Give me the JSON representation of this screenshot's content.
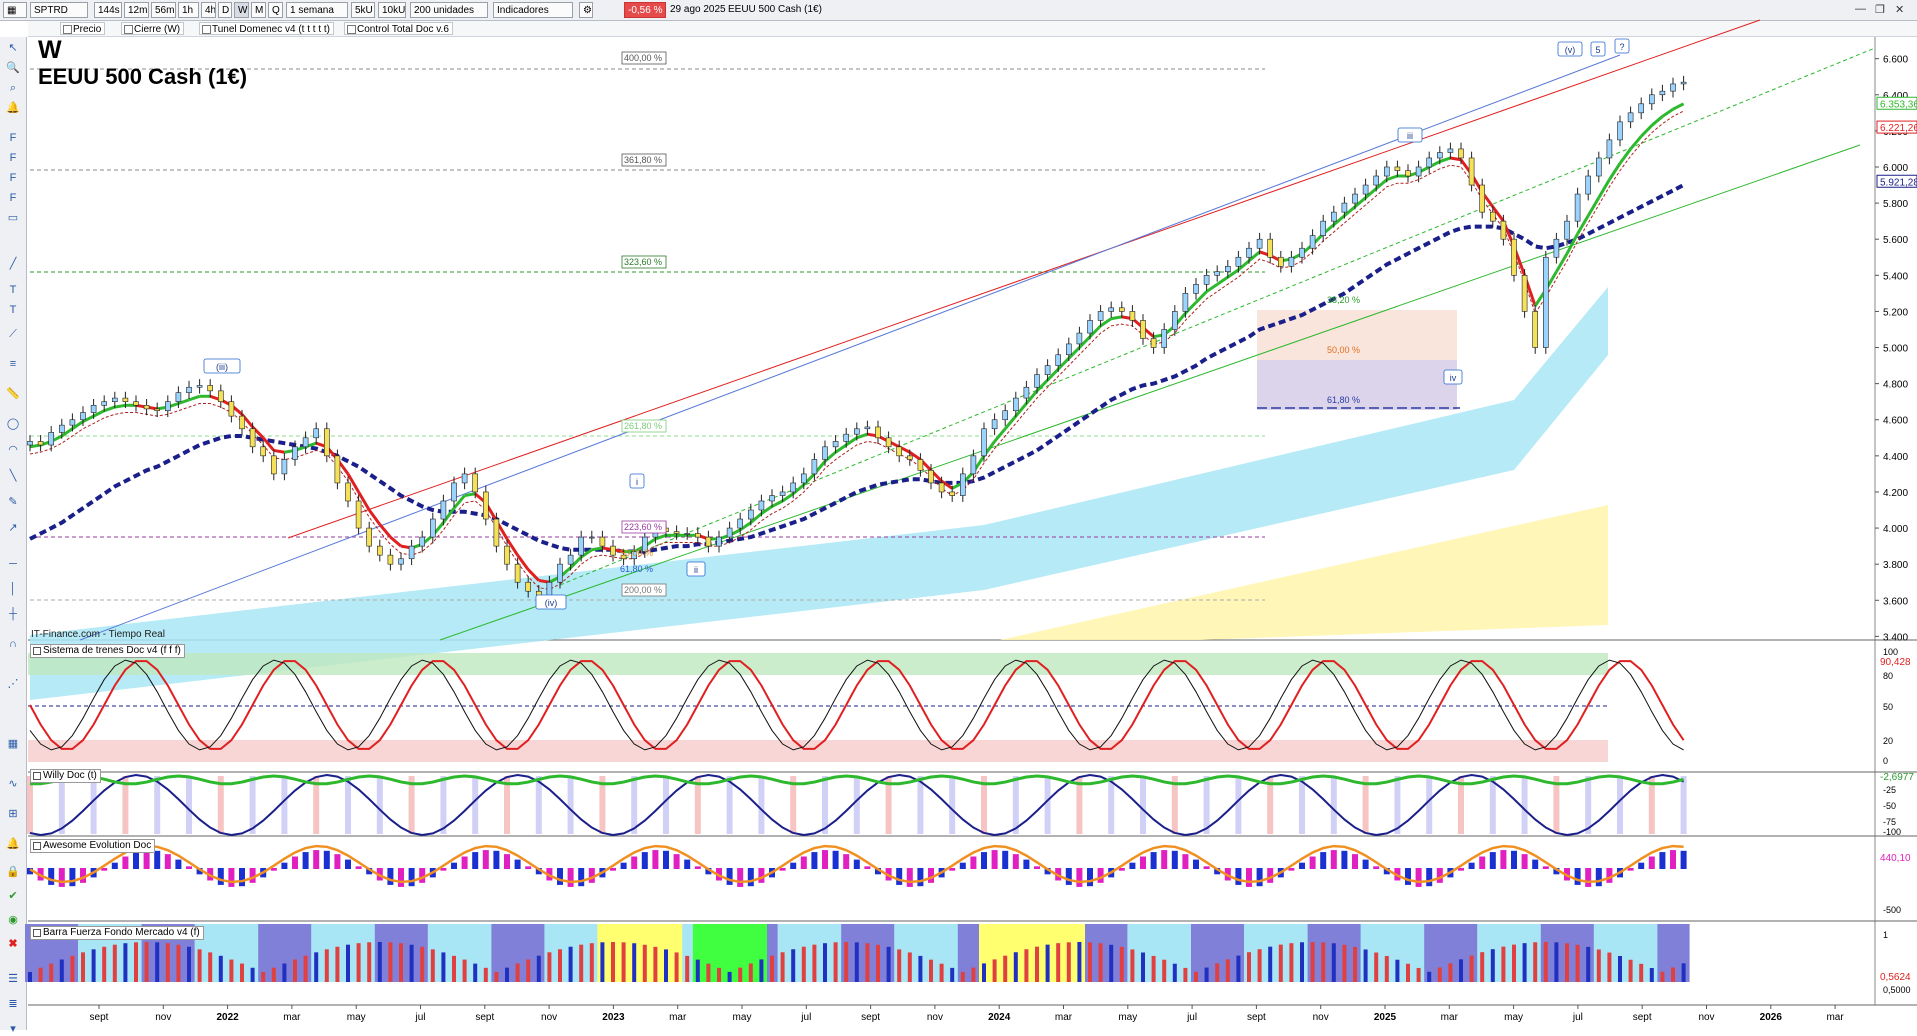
{
  "toolbar": {
    "symbol": "SPTRD",
    "timeframes": [
      "144s",
      "12m",
      "56m",
      "1h",
      "4h",
      "D",
      "W",
      "M",
      "Q"
    ],
    "active_timeframe": "W",
    "range": "1 semana",
    "units_5": "5kU",
    "units_10": "10kU",
    "units": "200 unidades",
    "indicators": "Indicadores",
    "change": "-0,56 %",
    "date": "29 ago 2025",
    "instrument": "EEUU 500 Cash (1€)"
  },
  "toolbar2": [
    "Precio",
    "Cierre (W)",
    "Tunel Domenec v4 (t t t t t)",
    "Control Total Doc v.6"
  ],
  "chart_title": "W",
  "chart_subtitle": "EEUU 500 Cash (1€)",
  "source": "IT-Finance.com - Tiempo Real",
  "colors": {
    "green": "#2db82d",
    "red": "#e02020",
    "navy": "#1a1f8a",
    "brown": "#a0641e",
    "cyan": "#a8e6f5",
    "yellow": "#fff5b0"
  },
  "chart_data": {
    "type": "line",
    "x_ticks": [
      "sept",
      "nov",
      "2022",
      "mar",
      "may",
      "jul",
      "sept",
      "nov",
      "2023",
      "mar",
      "may",
      "jul",
      "sept",
      "nov",
      "2024",
      "mar",
      "may",
      "jul",
      "sept",
      "nov",
      "2025",
      "mar",
      "may",
      "jul",
      "sept",
      "nov",
      "2026",
      "mar"
    ],
    "y_ticks": [
      "6.600",
      "6.400",
      "6.200",
      "6.000",
      "5.800",
      "5.600",
      "5.400",
      "5.200",
      "5.000",
      "4.800",
      "4.600",
      "4.400",
      "4.200",
      "4.000",
      "3.800",
      "3.600",
      "3.400"
    ],
    "ylim": [
      3380,
      6720
    ],
    "price_labels": [
      "6.353,36",
      "6.221,26",
      "5.921,28"
    ],
    "fib_labels": [
      "400,00 %",
      "361,80 %",
      "323,60 %",
      "261,80 %",
      "223,60 %",
      "200,00 %",
      "50,00 %",
      "61,80 %",
      "38,20 %",
      "50,00 %",
      "61,80 %"
    ],
    "wave_labels": [
      "(iii)",
      "(iv)",
      "i",
      "ii",
      "iii",
      "iv",
      "(v)",
      "5",
      "?"
    ],
    "price": [
      4480,
      4460,
      4530,
      4570,
      4600,
      4640,
      4680,
      4700,
      4720,
      4700,
      4680,
      4660,
      4650,
      4700,
      4750,
      4780,
      4790,
      4760,
      4700,
      4620,
      4550,
      4450,
      4400,
      4300,
      4380,
      4450,
      4500,
      4550,
      4400,
      4250,
      4150,
      4000,
      3900,
      3850,
      3800,
      3830,
      3900,
      3950,
      4050,
      4150,
      4250,
      4300,
      4200,
      4050,
      3900,
      3800,
      3700,
      3650,
      3620,
      3700,
      3800,
      3850,
      3950,
      3950,
      3900,
      3850,
      3830,
      3870,
      3950,
      4000,
      3980,
      3970,
      3970,
      3950,
      3900,
      3950,
      4000,
      4050,
      4100,
      4150,
      4180,
      4200,
      4250,
      4300,
      4380,
      4450,
      4480,
      4520,
      4550,
      4560,
      4500,
      4450,
      4400,
      4380,
      4320,
      4250,
      4200,
      4180,
      4300,
      4400,
      4550,
      4600,
      4650,
      4720,
      4780,
      4850,
      4900,
      4960,
      5020,
      5080,
      5150,
      5200,
      5220,
      5200,
      5150,
      5050,
      5000,
      5100,
      5200,
      5300,
      5350,
      5400,
      5420,
      5450,
      5500,
      5550,
      5600,
      5500,
      5450,
      5500,
      5550,
      5620,
      5700,
      5750,
      5800,
      5850,
      5900,
      5950,
      6000,
      5980,
      5950,
      6000,
      6050,
      6080,
      6100,
      6050,
      5900,
      5750,
      5700,
      5600,
      5400,
      5200,
      5000,
      5500,
      5600,
      5700,
      5850,
      5950,
      6050,
      6150,
      6250,
      6300,
      6350,
      6400,
      6420,
      6460,
      6470
    ],
    "ema_fast": [
      4450,
      4460,
      4480,
      4510,
      4550,
      4590,
      4620,
      4650,
      4670,
      4680,
      4680,
      4670,
      4660,
      4670,
      4690,
      4710,
      4730,
      4730,
      4710,
      4680,
      4630,
      4560,
      4500,
      4430,
      4420,
      4430,
      4450,
      4470,
      4450,
      4380,
      4300,
      4200,
      4100,
      4020,
      3950,
      3900,
      3890,
      3910,
      3960,
      4030,
      4110,
      4180,
      4190,
      4140,
      4040,
      3940,
      3850,
      3770,
      3710,
      3700,
      3730,
      3780,
      3840,
      3880,
      3890,
      3880,
      3870,
      3870,
      3900,
      3940,
      3960,
      3960,
      3960,
      3960,
      3940,
      3940,
      3960,
      3990,
      4030,
      4080,
      4120,
      4150,
      4190,
      4240,
      4300,
      4370,
      4420,
      4460,
      4500,
      4520,
      4510,
      4480,
      4450,
      4420,
      4380,
      4320,
      4260,
      4220,
      4250,
      4310,
      4400,
      4480,
      4550,
      4620,
      4690,
      4760,
      4820,
      4880,
      4940,
      5000,
      5060,
      5120,
      5160,
      5170,
      5160,
      5110,
      5060,
      5070,
      5120,
      5190,
      5250,
      5310,
      5350,
      5390,
      5430,
      5480,
      5530,
      5510,
      5480,
      5490,
      5520,
      5570,
      5630,
      5680,
      5730,
      5780,
      5830,
      5880,
      5930,
      5950,
      5950,
      5970,
      6000,
      6030,
      6050,
      6040,
      5960,
      5860,
      5780,
      5700,
      5560,
      5400,
      5230,
      5320,
      5420,
      5520,
      5630,
      5730,
      5830,
      5930,
      6020,
      6100,
      6170,
      6230,
      6280,
      6320,
      6350
    ],
    "ema_slow": [
      3940,
      3970,
      4000,
      4030,
      4070,
      4110,
      4150,
      4190,
      4230,
      4260,
      4290,
      4320,
      4340,
      4370,
      4400,
      4430,
      4460,
      4480,
      4500,
      4510,
      4510,
      4500,
      4490,
      4480,
      4470,
      4460,
      4450,
      4440,
      4420,
      4400,
      4370,
      4340,
      4300,
      4260,
      4220,
      4180,
      4150,
      4120,
      4100,
      4090,
      4090,
      4090,
      4080,
      4070,
      4050,
      4020,
      3990,
      3960,
      3930,
      3910,
      3890,
      3880,
      3880,
      3880,
      3880,
      3880,
      3870,
      3870,
      3870,
      3880,
      3890,
      3900,
      3900,
      3910,
      3910,
      3920,
      3930,
      3940,
      3950,
      3970,
      3990,
      4010,
      4030,
      4050,
      4080,
      4110,
      4140,
      4170,
      4200,
      4220,
      4240,
      4250,
      4260,
      4270,
      4270,
      4260,
      4250,
      4250,
      4250,
      4260,
      4280,
      4310,
      4340,
      4370,
      4400,
      4430,
      4470,
      4510,
      4550,
      4590,
      4630,
      4670,
      4710,
      4740,
      4770,
      4790,
      4800,
      4820,
      4840,
      4870,
      4900,
      4940,
      4970,
      5000,
      5030,
      5060,
      5100,
      5120,
      5140,
      5160,
      5180,
      5210,
      5240,
      5270,
      5300,
      5340,
      5380,
      5420,
      5460,
      5490,
      5520,
      5550,
      5580,
      5610,
      5640,
      5660,
      5670,
      5670,
      5670,
      5660,
      5630,
      5600,
      5560,
      5550,
      5560,
      5580,
      5600,
      5630,
      5660,
      5690,
      5720,
      5750,
      5780,
      5810,
      5840,
      5870,
      5900
    ]
  },
  "indicators": {
    "p1": {
      "title": "Sistema de trenes Doc v4 (f f f)",
      "value": "90,428",
      "ticks": [
        "100",
        "80",
        "50",
        "20",
        "0"
      ]
    },
    "p2": {
      "title": "Willy Doc (t)",
      "value": "-2,6977",
      "ticks": [
        "-25",
        "-50",
        "-75",
        "-100"
      ]
    },
    "p3": {
      "title": "Awesome Evolution Doc",
      "value": "440,10",
      "ticks": [
        "-500"
      ]
    },
    "p4": {
      "title": "Barra Fuerza Fondo Mercado v4 (f)",
      "value": "0,5624",
      "ticks": [
        "1",
        "0,5000"
      ]
    }
  }
}
